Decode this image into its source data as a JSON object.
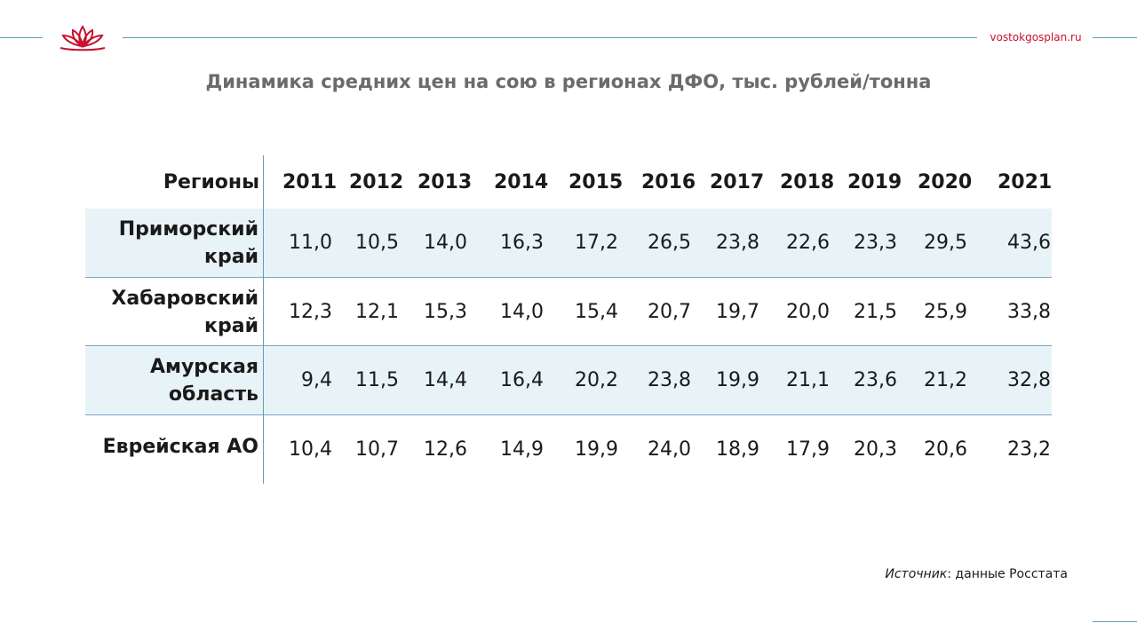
{
  "header": {
    "site": "vostokgosplan.ru",
    "logo_icon": "lotus-logo-icon"
  },
  "title": "Динамика средних цен на сою в регионах ДФО, тыс. рублей/тонна",
  "table": {
    "region_header": "Регионы",
    "years": [
      "2011",
      "2012",
      "2013",
      "2014",
      "2015",
      "2016",
      "2017",
      "2018",
      "2019",
      "2020",
      "2021"
    ],
    "rows": [
      {
        "region_line1": "Приморский",
        "region_line2": "край",
        "values": [
          "11,0",
          "10,5",
          "14,0",
          "16,3",
          "17,2",
          "26,5",
          "23,8",
          "22,6",
          "23,3",
          "29,5",
          "43,6"
        ]
      },
      {
        "region_line1": "Хабаровский",
        "region_line2": "край",
        "values": [
          "12,3",
          "12,1",
          "15,3",
          "14,0",
          "15,4",
          "20,7",
          "19,7",
          "20,0",
          "21,5",
          "25,9",
          "33,8"
        ]
      },
      {
        "region_line1": "Амурская",
        "region_line2": "область",
        "values": [
          "9,4",
          "11,5",
          "14,4",
          "16,4",
          "20,2",
          "23,8",
          "19,9",
          "21,1",
          "23,6",
          "21,2",
          "32,8"
        ]
      },
      {
        "region_line1": "Еврейская АО",
        "region_line2": "",
        "values": [
          "10,4",
          "10,7",
          "12,6",
          "14,9",
          "19,9",
          "24,0",
          "18,9",
          "17,9",
          "20,3",
          "20,6",
          "23,2"
        ]
      }
    ]
  },
  "source": {
    "label": "Источник",
    "text": ": данные Росстата"
  },
  "colors": {
    "accent_line": "#5aa2b6",
    "brand_red": "#c8102e",
    "row_shade": "#e8f3f7"
  }
}
